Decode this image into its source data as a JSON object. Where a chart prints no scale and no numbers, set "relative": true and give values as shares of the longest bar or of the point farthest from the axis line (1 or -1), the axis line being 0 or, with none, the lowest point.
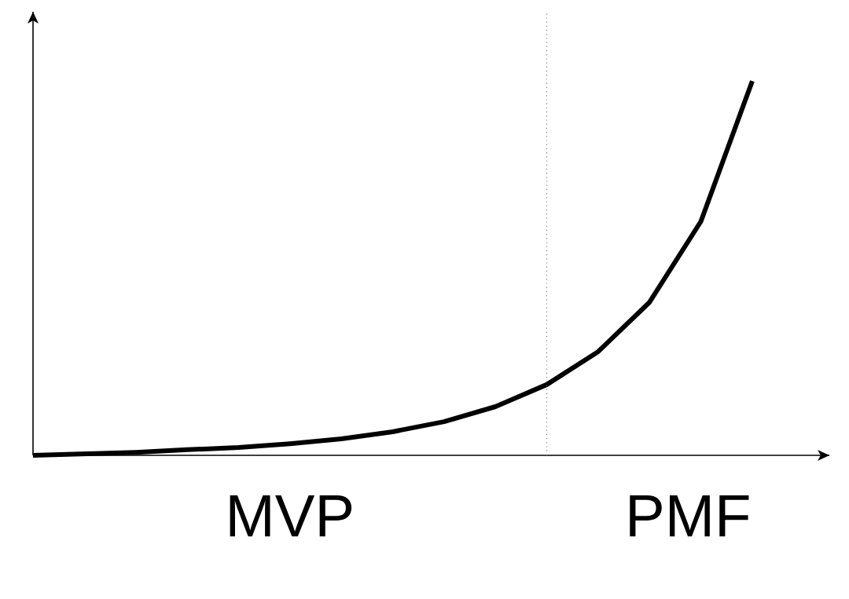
{
  "chart_data": {
    "type": "line",
    "relative": true,
    "categories": [
      null,
      null,
      null,
      null,
      null,
      null,
      null,
      null,
      null,
      null,
      null,
      null,
      null,
      null,
      null
    ],
    "values": [
      0,
      0.004,
      0.008,
      0.015,
      0.021,
      0.031,
      0.044,
      0.063,
      0.09,
      0.13,
      0.189,
      0.277,
      0.409,
      0.625,
      1
    ],
    "color": "#000000",
    "tick_labels": false,
    "marker": "none",
    "line_style": "solid",
    "annotations": [
      "MVP",
      "PMF"
    ]
  }
}
